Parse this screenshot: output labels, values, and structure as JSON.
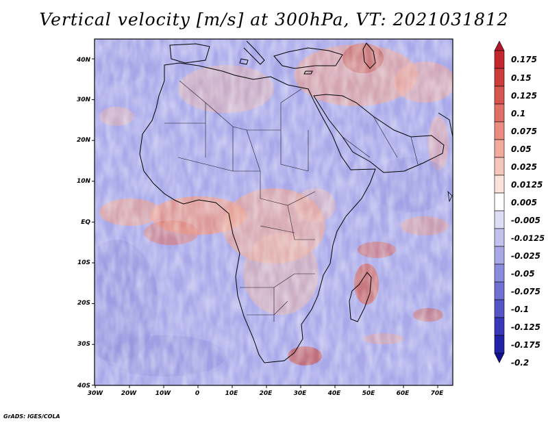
{
  "title": "Vertical velocity [m/s] at 300hPa, VT: 2021031812",
  "map": {
    "lat_ticks": [
      "40N",
      "30N",
      "20N",
      "10N",
      "EQ",
      "10S",
      "20S",
      "30S",
      "40S"
    ],
    "lon_ticks": [
      "30W",
      "20W",
      "10W",
      "0",
      "10E",
      "20E",
      "30E",
      "40E",
      "50E",
      "60E",
      "70E"
    ]
  },
  "colorbar": {
    "labels": [
      "0.175",
      "0.15",
      "0.125",
      "0.1",
      "0.075",
      "0.05",
      "0.025",
      "0.0125",
      "0.005",
      "-0.005",
      "-0.0125",
      "-0.025",
      "-0.05",
      "-0.075",
      "-0.1",
      "-0.125",
      "-0.175",
      "-0.2"
    ],
    "colors": [
      "#b2182b",
      "#c1272d",
      "#cc3d3a",
      "#d6554f",
      "#e07066",
      "#ea8c80",
      "#f2aa9d",
      "#f7c6bb",
      "#fbe2db",
      "#ffffff",
      "#dcdcf5",
      "#c2c2ee",
      "#a8a8e6",
      "#8c8cdd",
      "#7070d2",
      "#5454c6",
      "#3838b8",
      "#2222a6",
      "#11118f"
    ]
  },
  "credit": "GrADS: IGES/COLA"
}
